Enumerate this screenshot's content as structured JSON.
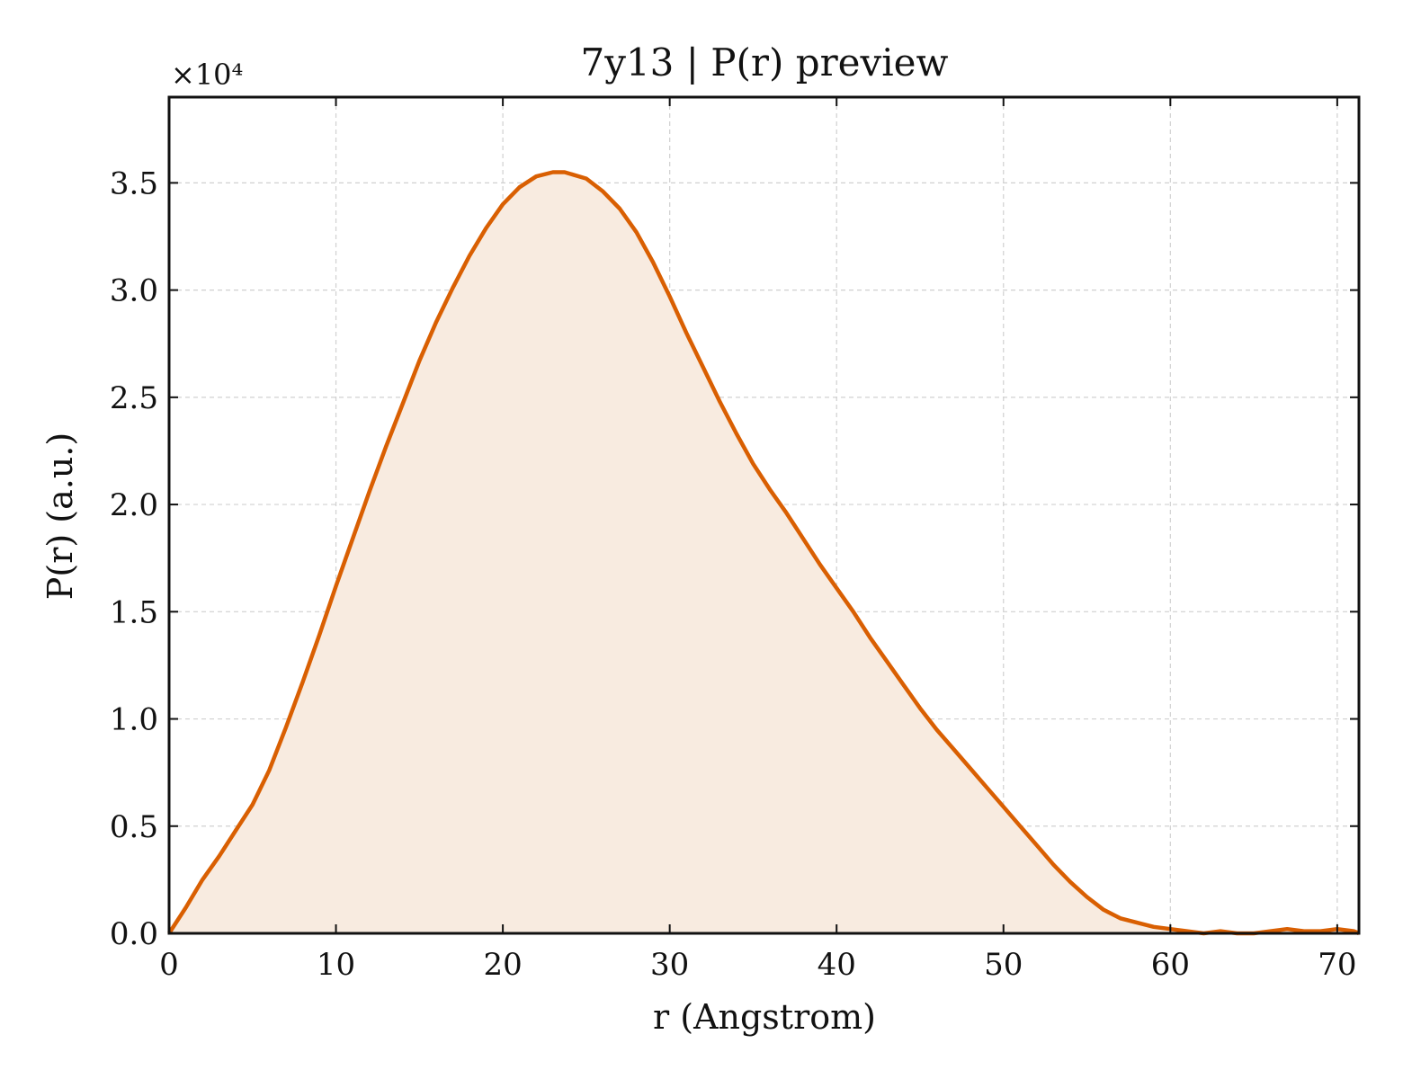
{
  "chart_data": {
    "type": "area",
    "title": "7y13 | P(r) preview",
    "xlabel": "r (Angstrom)",
    "ylabel": "P(r) (a.u.)",
    "y_multiplier": "×10⁴",
    "xlim": [
      0,
      71.3
    ],
    "ylim": [
      0,
      3.9
    ],
    "y_units": "×10⁴",
    "x_ticks": [
      0,
      10,
      20,
      30,
      40,
      50,
      60,
      70
    ],
    "x_tick_labels": [
      "0",
      "10",
      "20",
      "30",
      "40",
      "50",
      "60",
      "70"
    ],
    "y_ticks": [
      0,
      0.5,
      1.0,
      1.5,
      2.0,
      2.5,
      3.0,
      3.5
    ],
    "y_tick_labels": [
      "0.0",
      "0.5",
      "1.0",
      "1.5",
      "2.0",
      "2.5",
      "3.0",
      "3.5"
    ],
    "grid": true,
    "line_color": "#d95f02",
    "fill_color": "#f8ebe0",
    "series": [
      {
        "x": [
          0,
          1,
          2,
          3,
          4,
          5,
          6,
          7,
          8,
          9,
          10,
          11,
          12,
          13,
          14,
          15,
          16,
          17,
          18,
          19,
          20,
          21,
          22,
          23,
          23.7,
          25,
          26,
          27,
          28,
          29,
          30,
          31,
          32,
          33,
          34,
          35,
          36,
          37,
          38,
          39,
          40,
          41,
          42,
          43,
          44,
          45,
          46,
          47,
          48,
          49,
          50,
          51,
          52,
          53,
          54,
          55,
          56,
          57,
          58,
          59,
          60,
          61,
          62,
          63,
          64,
          65,
          66,
          67,
          68,
          69,
          70,
          71,
          71.3
        ],
        "y": [
          0.0,
          0.12,
          0.25,
          0.36,
          0.48,
          0.6,
          0.76,
          0.96,
          1.17,
          1.39,
          1.62,
          1.84,
          2.06,
          2.27,
          2.47,
          2.67,
          2.85,
          3.01,
          3.16,
          3.29,
          3.4,
          3.48,
          3.53,
          3.55,
          3.55,
          3.52,
          3.46,
          3.38,
          3.27,
          3.13,
          2.97,
          2.8,
          2.64,
          2.48,
          2.33,
          2.19,
          2.07,
          1.96,
          1.84,
          1.72,
          1.61,
          1.5,
          1.38,
          1.27,
          1.16,
          1.05,
          0.95,
          0.86,
          0.77,
          0.68,
          0.59,
          0.5,
          0.41,
          0.32,
          0.24,
          0.17,
          0.11,
          0.07,
          0.05,
          0.03,
          0.02,
          0.01,
          0.0,
          0.01,
          0.0,
          0.0,
          0.01,
          0.02,
          0.01,
          0.01,
          0.02,
          0.01,
          0.0
        ]
      }
    ]
  }
}
